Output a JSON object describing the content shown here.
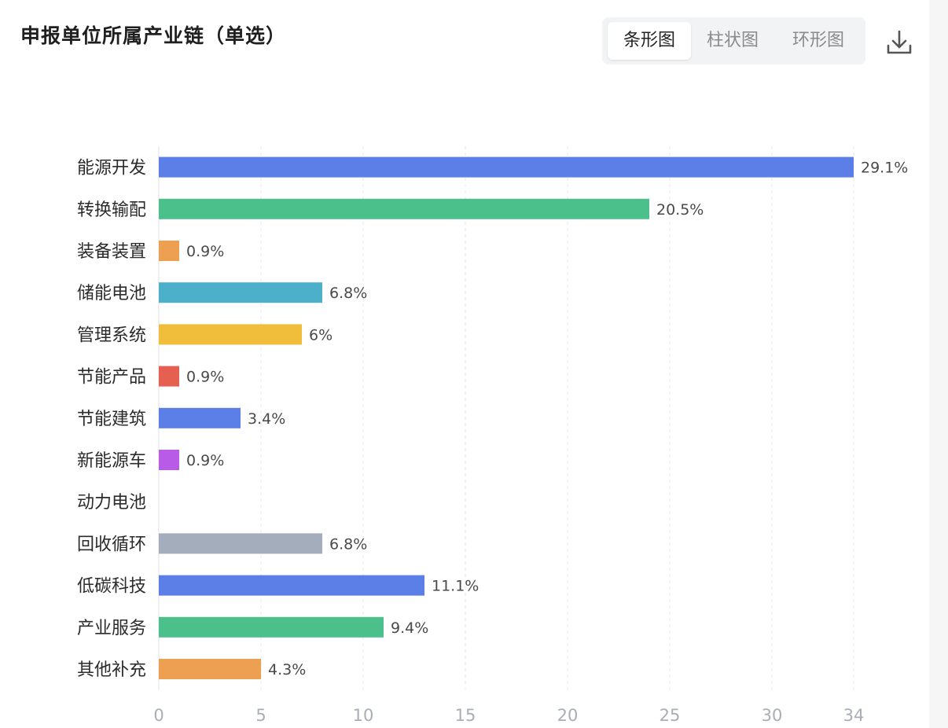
{
  "title": "申报单位所属产业链（单选）",
  "chart_tabs": [
    {
      "label": "条形图",
      "active": true
    },
    {
      "label": "柱状图",
      "active": false
    },
    {
      "label": "环形图",
      "active": false
    }
  ],
  "download_icon": "download-icon",
  "chart_data": {
    "type": "bar",
    "orientation": "horizontal",
    "title": "申报单位所属产业链（单选）",
    "xlabel": "",
    "ylabel": "",
    "xlim": [
      0,
      34
    ],
    "x_ticks": [
      "0",
      "5",
      "10",
      "15",
      "20",
      "25",
      "30",
      "34"
    ],
    "grid": "vertical-dashed",
    "categories": [
      "能源开发",
      "转换输配",
      "装备装置",
      "储能电池",
      "管理系统",
      "节能产品",
      "节能建筑",
      "新能源车",
      "动力电池",
      "回收循环",
      "低碳科技",
      "产业服务",
      "其他补充"
    ],
    "values": [
      34,
      24,
      1,
      8,
      7,
      1,
      4,
      1,
      0,
      8,
      13,
      11,
      5
    ],
    "data_labels": [
      "29.1%",
      "20.5%",
      "0.9%",
      "6.8%",
      "6%",
      "0.9%",
      "3.4%",
      "0.9%",
      "",
      "6.8%",
      "11.1%",
      "9.4%",
      "4.3%"
    ],
    "colors": [
      "#5b7fe6",
      "#4cc08a",
      "#eea052",
      "#4cb0cb",
      "#f0be3a",
      "#e56050",
      "#5b7fe6",
      "#b85be6",
      "#5b7fe6",
      "#a3adbc",
      "#5b7fe6",
      "#4cc08a",
      "#eea052"
    ]
  }
}
